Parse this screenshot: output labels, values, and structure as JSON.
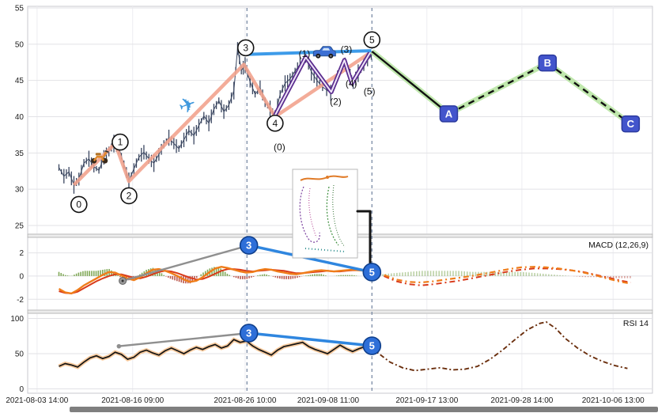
{
  "axes": {
    "x_ticks": [
      {
        "frac": 1.5,
        "label": "2021-08-03 14:00"
      },
      {
        "frac": 16.8,
        "label": "2021-08-16 09:00"
      },
      {
        "frac": 34.8,
        "label": "2021-08-26 10:00"
      },
      {
        "frac": 48.1,
        "label": "2021-09-08 11:00"
      },
      {
        "frac": 63.9,
        "label": "2021-09-17 13:00"
      },
      {
        "frac": 79.1,
        "label": "2021-09-28 14:00"
      },
      {
        "frac": 93.7,
        "label": "2021-10-06 13:00"
      }
    ],
    "vlines": [
      35.1,
      55.1
    ]
  },
  "colors": {
    "price": "#3a4660",
    "wave_pink": "#f2a38e",
    "trend_blue": "#3d9be9",
    "subwave_purple": "#5b2d8f",
    "subwave_inner": "#efe6f8",
    "projection_glow": "#b9e6a4",
    "projection_line": "#111111",
    "abc_fill": "#4355cc",
    "abc_stroke": "#2b3a9e",
    "marker_blue": "#2e6fd8",
    "marker_blue_stroke": "#0f3f8c",
    "macd_line": "#ef7d1a",
    "macd_signal": "#d93a1a",
    "hist_up": "#6a9a3a",
    "hist_down": "#b03a2e",
    "rsi_line": "#141414",
    "rsi_glow": "#f6bd85",
    "rsi_proj": "#6b2f0e",
    "gray_trend": "#8f8f8f",
    "vline": "#7b8ca6",
    "grid": "#e2e2e6",
    "panel_border": "#c9c9cf"
  },
  "chart_data": [
    {
      "type": "line",
      "style": "candlestick-price-with-elliott-waves",
      "panel": "price",
      "title": "",
      "ylim": [
        25,
        55
      ],
      "yticks": [
        55,
        50,
        45,
        40,
        35,
        30,
        25
      ],
      "points": [
        [
          5,
          33
        ],
        [
          5.8,
          31.8
        ],
        [
          6.6,
          32.4
        ],
        [
          7.4,
          30.6
        ],
        [
          8.2,
          31.4
        ],
        [
          9,
          33.6
        ],
        [
          9.8,
          34.2
        ],
        [
          10.6,
          33.1
        ],
        [
          11.4,
          32.6
        ],
        [
          12.2,
          34.4
        ],
        [
          13,
          35.2
        ],
        [
          13.8,
          36.3
        ],
        [
          14.6,
          35.7
        ],
        [
          15.4,
          33.4
        ],
        [
          16.2,
          31.2
        ],
        [
          17,
          32.8
        ],
        [
          17.8,
          34.4
        ],
        [
          18.6,
          35.1
        ],
        [
          19.4,
          34.2
        ],
        [
          20.2,
          33.6
        ],
        [
          21,
          34.8
        ],
        [
          21.8,
          36.2
        ],
        [
          22.6,
          37.1
        ],
        [
          23.4,
          36.3
        ],
        [
          24.2,
          35.6
        ],
        [
          25,
          36.8
        ],
        [
          25.8,
          38.1
        ],
        [
          26.6,
          37.4
        ],
        [
          27.4,
          38.8
        ],
        [
          28.2,
          40.1
        ],
        [
          29,
          39.1
        ],
        [
          29.8,
          41
        ],
        [
          30.6,
          42.2
        ],
        [
          31.4,
          40.7
        ],
        [
          32.2,
          41.6
        ],
        [
          33,
          43.6
        ],
        [
          33.6,
          49.4
        ],
        [
          34.2,
          46.4
        ],
        [
          34.8,
          47.1
        ],
        [
          35.6,
          44.8
        ],
        [
          36.4,
          43.1
        ],
        [
          37.2,
          44
        ],
        [
          38,
          42
        ],
        [
          38.8,
          41
        ],
        [
          39.6,
          40
        ],
        [
          40.4,
          43.1
        ],
        [
          41.2,
          44.6
        ],
        [
          42,
          45.2
        ],
        [
          42.8,
          46.3
        ],
        [
          43.6,
          47.2
        ],
        [
          44.5,
          48.1
        ],
        [
          45.4,
          46.2
        ],
        [
          46.3,
          45
        ],
        [
          47.2,
          44.1
        ],
        [
          48.5,
          43.3
        ],
        [
          49.6,
          45.6
        ],
        [
          50.8,
          47.7
        ],
        [
          51.6,
          45.6
        ],
        [
          52.1,
          44.5
        ],
        [
          52.9,
          46
        ],
        [
          53.8,
          47.2
        ],
        [
          55,
          48.4
        ]
      ],
      "wave_line": [
        [
          7.4,
          30.6
        ],
        [
          14,
          36.3
        ],
        [
          16.2,
          31.1
        ],
        [
          34.6,
          47.2
        ],
        [
          39.6,
          40
        ],
        [
          54.8,
          48.8
        ]
      ],
      "blue_line": [
        [
          35,
          48.6
        ],
        [
          55,
          49.1
        ]
      ],
      "subwave_line": [
        [
          39.6,
          40.2
        ],
        [
          44.5,
          48.2
        ],
        [
          48.6,
          43.4
        ],
        [
          50.7,
          47.8
        ],
        [
          51.9,
          44.6
        ],
        [
          54.8,
          48.8
        ]
      ],
      "projection_solid": [
        [
          55.1,
          49
        ],
        [
          67.4,
          40.4
        ]
      ],
      "projection_dashed": [
        [
          67.4,
          40.4
        ],
        [
          83.2,
          47.4
        ],
        [
          96.5,
          39
        ]
      ],
      "wave_markers": [
        {
          "label": "0",
          "x": 8.2,
          "y": 27.9
        },
        {
          "label": "1",
          "x": 14.8,
          "y": 36.5
        },
        {
          "label": "2",
          "x": 16.2,
          "y": 29.1
        },
        {
          "label": "3",
          "x": 34.9,
          "y": 49.5
        },
        {
          "label": "4",
          "x": 39.6,
          "y": 39.1
        },
        {
          "label": "5",
          "x": 55.1,
          "y": 50.6
        }
      ],
      "subwave_labels": [
        {
          "label": "(0)",
          "x": 40.3,
          "y": 35.8
        },
        {
          "label": "(1)",
          "x": 44.3,
          "y": 48.7
        },
        {
          "label": "(2)",
          "x": 49.3,
          "y": 42.1
        },
        {
          "label": "(3)",
          "x": 51.0,
          "y": 49.3
        },
        {
          "label": "(4)",
          "x": 51.8,
          "y": 44.6
        },
        {
          "label": "(5)",
          "x": 54.7,
          "y": 43.5
        }
      ],
      "abc_markers": [
        {
          "label": "A",
          "x": 67.4,
          "y": 40.4
        },
        {
          "label": "B",
          "x": 83.2,
          "y": 47.4
        },
        {
          "label": "C",
          "x": 96.5,
          "y": 39.0
        }
      ],
      "icons": [
        {
          "name": "scooter-icon",
          "x": 11.5,
          "y": 34.8
        },
        {
          "name": "airplane-icon",
          "x": 25.6,
          "y": 41.5
        },
        {
          "name": "car-icon",
          "x": 47.5,
          "y": 48.8
        }
      ]
    },
    {
      "type": "line",
      "style": "macd-with-histogram",
      "panel": "macd",
      "title": "MACD (12,26,9)",
      "ylim": [
        -2.8,
        3.2
      ],
      "yticks": [
        2,
        0,
        -2
      ],
      "macd": [
        [
          5,
          -1.1
        ],
        [
          6,
          -1.4
        ],
        [
          7,
          -1.5
        ],
        [
          8,
          -1.2
        ],
        [
          9,
          -0.8
        ],
        [
          10,
          -0.5
        ],
        [
          11,
          -0.2
        ],
        [
          12,
          0.1
        ],
        [
          13,
          0.35
        ],
        [
          14,
          0.3
        ],
        [
          15,
          0.05
        ],
        [
          16,
          -0.2
        ],
        [
          17,
          -0.35
        ],
        [
          18,
          -0.1
        ],
        [
          19,
          0.25
        ],
        [
          20,
          0.55
        ],
        [
          21,
          0.6
        ],
        [
          22,
          0.45
        ],
        [
          23,
          0.25
        ],
        [
          24,
          0
        ],
        [
          25,
          -0.3
        ],
        [
          26,
          -0.5
        ],
        [
          27,
          -0.4
        ],
        [
          28,
          -0.1
        ],
        [
          29,
          0.3
        ],
        [
          30,
          0.65
        ],
        [
          31,
          0.8
        ],
        [
          32,
          0.7
        ],
        [
          33,
          0.55
        ],
        [
          34,
          0.4
        ],
        [
          35,
          0.3
        ],
        [
          36,
          0.35
        ],
        [
          37,
          0.5
        ],
        [
          38,
          0.6
        ],
        [
          39,
          0.55
        ],
        [
          40,
          0.4
        ],
        [
          41,
          0.3
        ],
        [
          42,
          0.2
        ],
        [
          43,
          0.15
        ],
        [
          44,
          0.25
        ],
        [
          45,
          0.35
        ],
        [
          46,
          0.45
        ],
        [
          47,
          0.5
        ],
        [
          48,
          0.45
        ],
        [
          49,
          0.4
        ],
        [
          50,
          0.45
        ],
        [
          51,
          0.5
        ],
        [
          52,
          0.55
        ],
        [
          53,
          0.5
        ],
        [
          54,
          0.45
        ],
        [
          55,
          0.45
        ]
      ],
      "signal": [
        [
          5,
          -1.3
        ],
        [
          6,
          -1.45
        ],
        [
          7,
          -1.5
        ],
        [
          8,
          -1.35
        ],
        [
          9,
          -1.05
        ],
        [
          10,
          -0.75
        ],
        [
          11,
          -0.45
        ],
        [
          12,
          -0.2
        ],
        [
          13,
          0
        ],
        [
          14,
          0.15
        ],
        [
          15,
          0.15
        ],
        [
          16,
          0
        ],
        [
          17,
          -0.15
        ],
        [
          18,
          -0.2
        ],
        [
          19,
          -0.05
        ],
        [
          20,
          0.15
        ],
        [
          21,
          0.35
        ],
        [
          22,
          0.45
        ],
        [
          23,
          0.4
        ],
        [
          24,
          0.25
        ],
        [
          25,
          0.05
        ],
        [
          26,
          -0.15
        ],
        [
          27,
          -0.3
        ],
        [
          28,
          -0.25
        ],
        [
          29,
          -0.05
        ],
        [
          30,
          0.2
        ],
        [
          31,
          0.45
        ],
        [
          32,
          0.6
        ],
        [
          33,
          0.6
        ],
        [
          34,
          0.55
        ],
        [
          35,
          0.45
        ],
        [
          36,
          0.4
        ],
        [
          37,
          0.45
        ],
        [
          38,
          0.5
        ],
        [
          39,
          0.55
        ],
        [
          40,
          0.5
        ],
        [
          41,
          0.45
        ],
        [
          42,
          0.35
        ],
        [
          43,
          0.25
        ],
        [
          44,
          0.25
        ],
        [
          45,
          0.3
        ],
        [
          46,
          0.35
        ],
        [
          47,
          0.4
        ],
        [
          48,
          0.45
        ],
        [
          49,
          0.4
        ],
        [
          50,
          0.4
        ],
        [
          51,
          0.45
        ],
        [
          52,
          0.5
        ],
        [
          53,
          0.5
        ],
        [
          54,
          0.45
        ],
        [
          55,
          0.45
        ]
      ],
      "proj_macd": [
        [
          55,
          0.45
        ],
        [
          57,
          0.1
        ],
        [
          59,
          -0.3
        ],
        [
          61,
          -0.5
        ],
        [
          63,
          -0.55
        ],
        [
          65,
          -0.45
        ],
        [
          67,
          -0.3
        ],
        [
          69,
          -0.15
        ],
        [
          71,
          0
        ],
        [
          73,
          0.2
        ],
        [
          75,
          0.4
        ],
        [
          77,
          0.6
        ],
        [
          79,
          0.75
        ],
        [
          81,
          0.8
        ],
        [
          83,
          0.75
        ],
        [
          85,
          0.65
        ],
        [
          87,
          0.5
        ],
        [
          89,
          0.3
        ],
        [
          91,
          0.05
        ],
        [
          93,
          -0.25
        ],
        [
          95,
          -0.5
        ],
        [
          96.5,
          -0.65
        ]
      ],
      "proj_signal": [
        [
          55,
          0.4
        ],
        [
          57,
          0
        ],
        [
          59,
          -0.45
        ],
        [
          61,
          -0.7
        ],
        [
          63,
          -0.8
        ],
        [
          65,
          -0.7
        ],
        [
          67,
          -0.55
        ],
        [
          69,
          -0.4
        ],
        [
          71,
          -0.2
        ],
        [
          73,
          0
        ],
        [
          75,
          0.2
        ],
        [
          77,
          0.4
        ],
        [
          79,
          0.55
        ],
        [
          81,
          0.65
        ],
        [
          83,
          0.65
        ],
        [
          85,
          0.6
        ],
        [
          87,
          0.5
        ],
        [
          89,
          0.35
        ],
        [
          91,
          0.1
        ],
        [
          93,
          -0.15
        ],
        [
          95,
          -0.4
        ],
        [
          96.5,
          -0.55
        ]
      ],
      "gray_line": [
        [
          15.2,
          -0.41
        ],
        [
          35.4,
          2.65
        ]
      ],
      "blue_line": [
        [
          35.4,
          2.65
        ],
        [
          55.1,
          0.34
        ]
      ],
      "markers": [
        {
          "label": "3",
          "x": 35.4,
          "y": 2.65
        },
        {
          "label": "5",
          "x": 55.1,
          "y": 0.34
        }
      ]
    },
    {
      "type": "line",
      "style": "rsi",
      "panel": "rsi",
      "title": "RSI 14",
      "ylim": [
        0,
        100
      ],
      "yticks": [
        100,
        50,
        0
      ],
      "rsi": [
        [
          5,
          32
        ],
        [
          6,
          36
        ],
        [
          7,
          34
        ],
        [
          8,
          31
        ],
        [
          9,
          38
        ],
        [
          10,
          44
        ],
        [
          11,
          47
        ],
        [
          12,
          43
        ],
        [
          13,
          46
        ],
        [
          14,
          52
        ],
        [
          15,
          49
        ],
        [
          16,
          42
        ],
        [
          17,
          45
        ],
        [
          18,
          52
        ],
        [
          19,
          55
        ],
        [
          20,
          51
        ],
        [
          21,
          48
        ],
        [
          22,
          54
        ],
        [
          23,
          58
        ],
        [
          24,
          54
        ],
        [
          25,
          50
        ],
        [
          26,
          55
        ],
        [
          27,
          59
        ],
        [
          28,
          56
        ],
        [
          29,
          60
        ],
        [
          30,
          63
        ],
        [
          31,
          58
        ],
        [
          32,
          61
        ],
        [
          33,
          70
        ],
        [
          34,
          66
        ],
        [
          35,
          68
        ],
        [
          36,
          61
        ],
        [
          37,
          56
        ],
        [
          38,
          52
        ],
        [
          39,
          48
        ],
        [
          40,
          55
        ],
        [
          41,
          60
        ],
        [
          42,
          62
        ],
        [
          43,
          64
        ],
        [
          44,
          66
        ],
        [
          45,
          60
        ],
        [
          46,
          56
        ],
        [
          47,
          53
        ],
        [
          48,
          50
        ],
        [
          49,
          56
        ],
        [
          50,
          62
        ],
        [
          51,
          57
        ],
        [
          52,
          53
        ],
        [
          53,
          57
        ],
        [
          54,
          60
        ],
        [
          55,
          58
        ]
      ],
      "proj_rsi": [
        [
          55,
          58
        ],
        [
          56.5,
          48
        ],
        [
          58,
          38
        ],
        [
          60,
          30
        ],
        [
          62,
          26
        ],
        [
          64,
          28
        ],
        [
          66,
          30
        ],
        [
          68,
          27
        ],
        [
          70,
          28
        ],
        [
          72,
          32
        ],
        [
          74,
          42
        ],
        [
          76,
          55
        ],
        [
          78,
          70
        ],
        [
          80,
          84
        ],
        [
          82,
          93
        ],
        [
          83,
          95
        ],
        [
          84.5,
          86
        ],
        [
          86,
          72
        ],
        [
          88,
          58
        ],
        [
          90,
          47
        ],
        [
          92,
          39
        ],
        [
          94,
          33
        ],
        [
          96,
          29
        ]
      ],
      "gray_line": [
        [
          14.6,
          60.5
        ],
        [
          35.4,
          79.2
        ]
      ],
      "blue_line": [
        [
          35.4,
          79.2
        ],
        [
          55.1,
          61.2
        ]
      ],
      "markers": [
        {
          "label": "3",
          "x": 35.4,
          "y": 79.2
        },
        {
          "label": "5",
          "x": 55.1,
          "y": 61.2
        }
      ]
    }
  ]
}
